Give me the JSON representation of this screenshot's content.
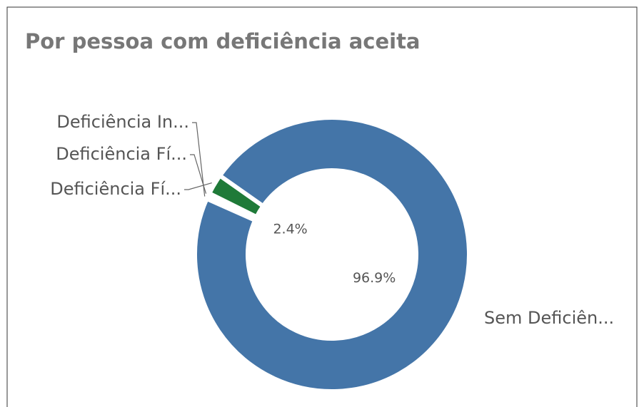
{
  "chart_data": {
    "type": "donut",
    "title": "Por pessoa com deficiência aceita",
    "categories": [
      "Deficiência In...",
      "Deficiência Fí...",
      "Deficiência Fí...",
      "Sem Deficiên..."
    ],
    "values": [
      0.3,
      0.4,
      2.4,
      96.9
    ],
    "value_labels": [
      null,
      null,
      "2.4%",
      "96.9%"
    ],
    "colors": [
      "#f4f4f4",
      "#f4f4f4",
      "#1f7a38",
      "#4475a8"
    ]
  }
}
